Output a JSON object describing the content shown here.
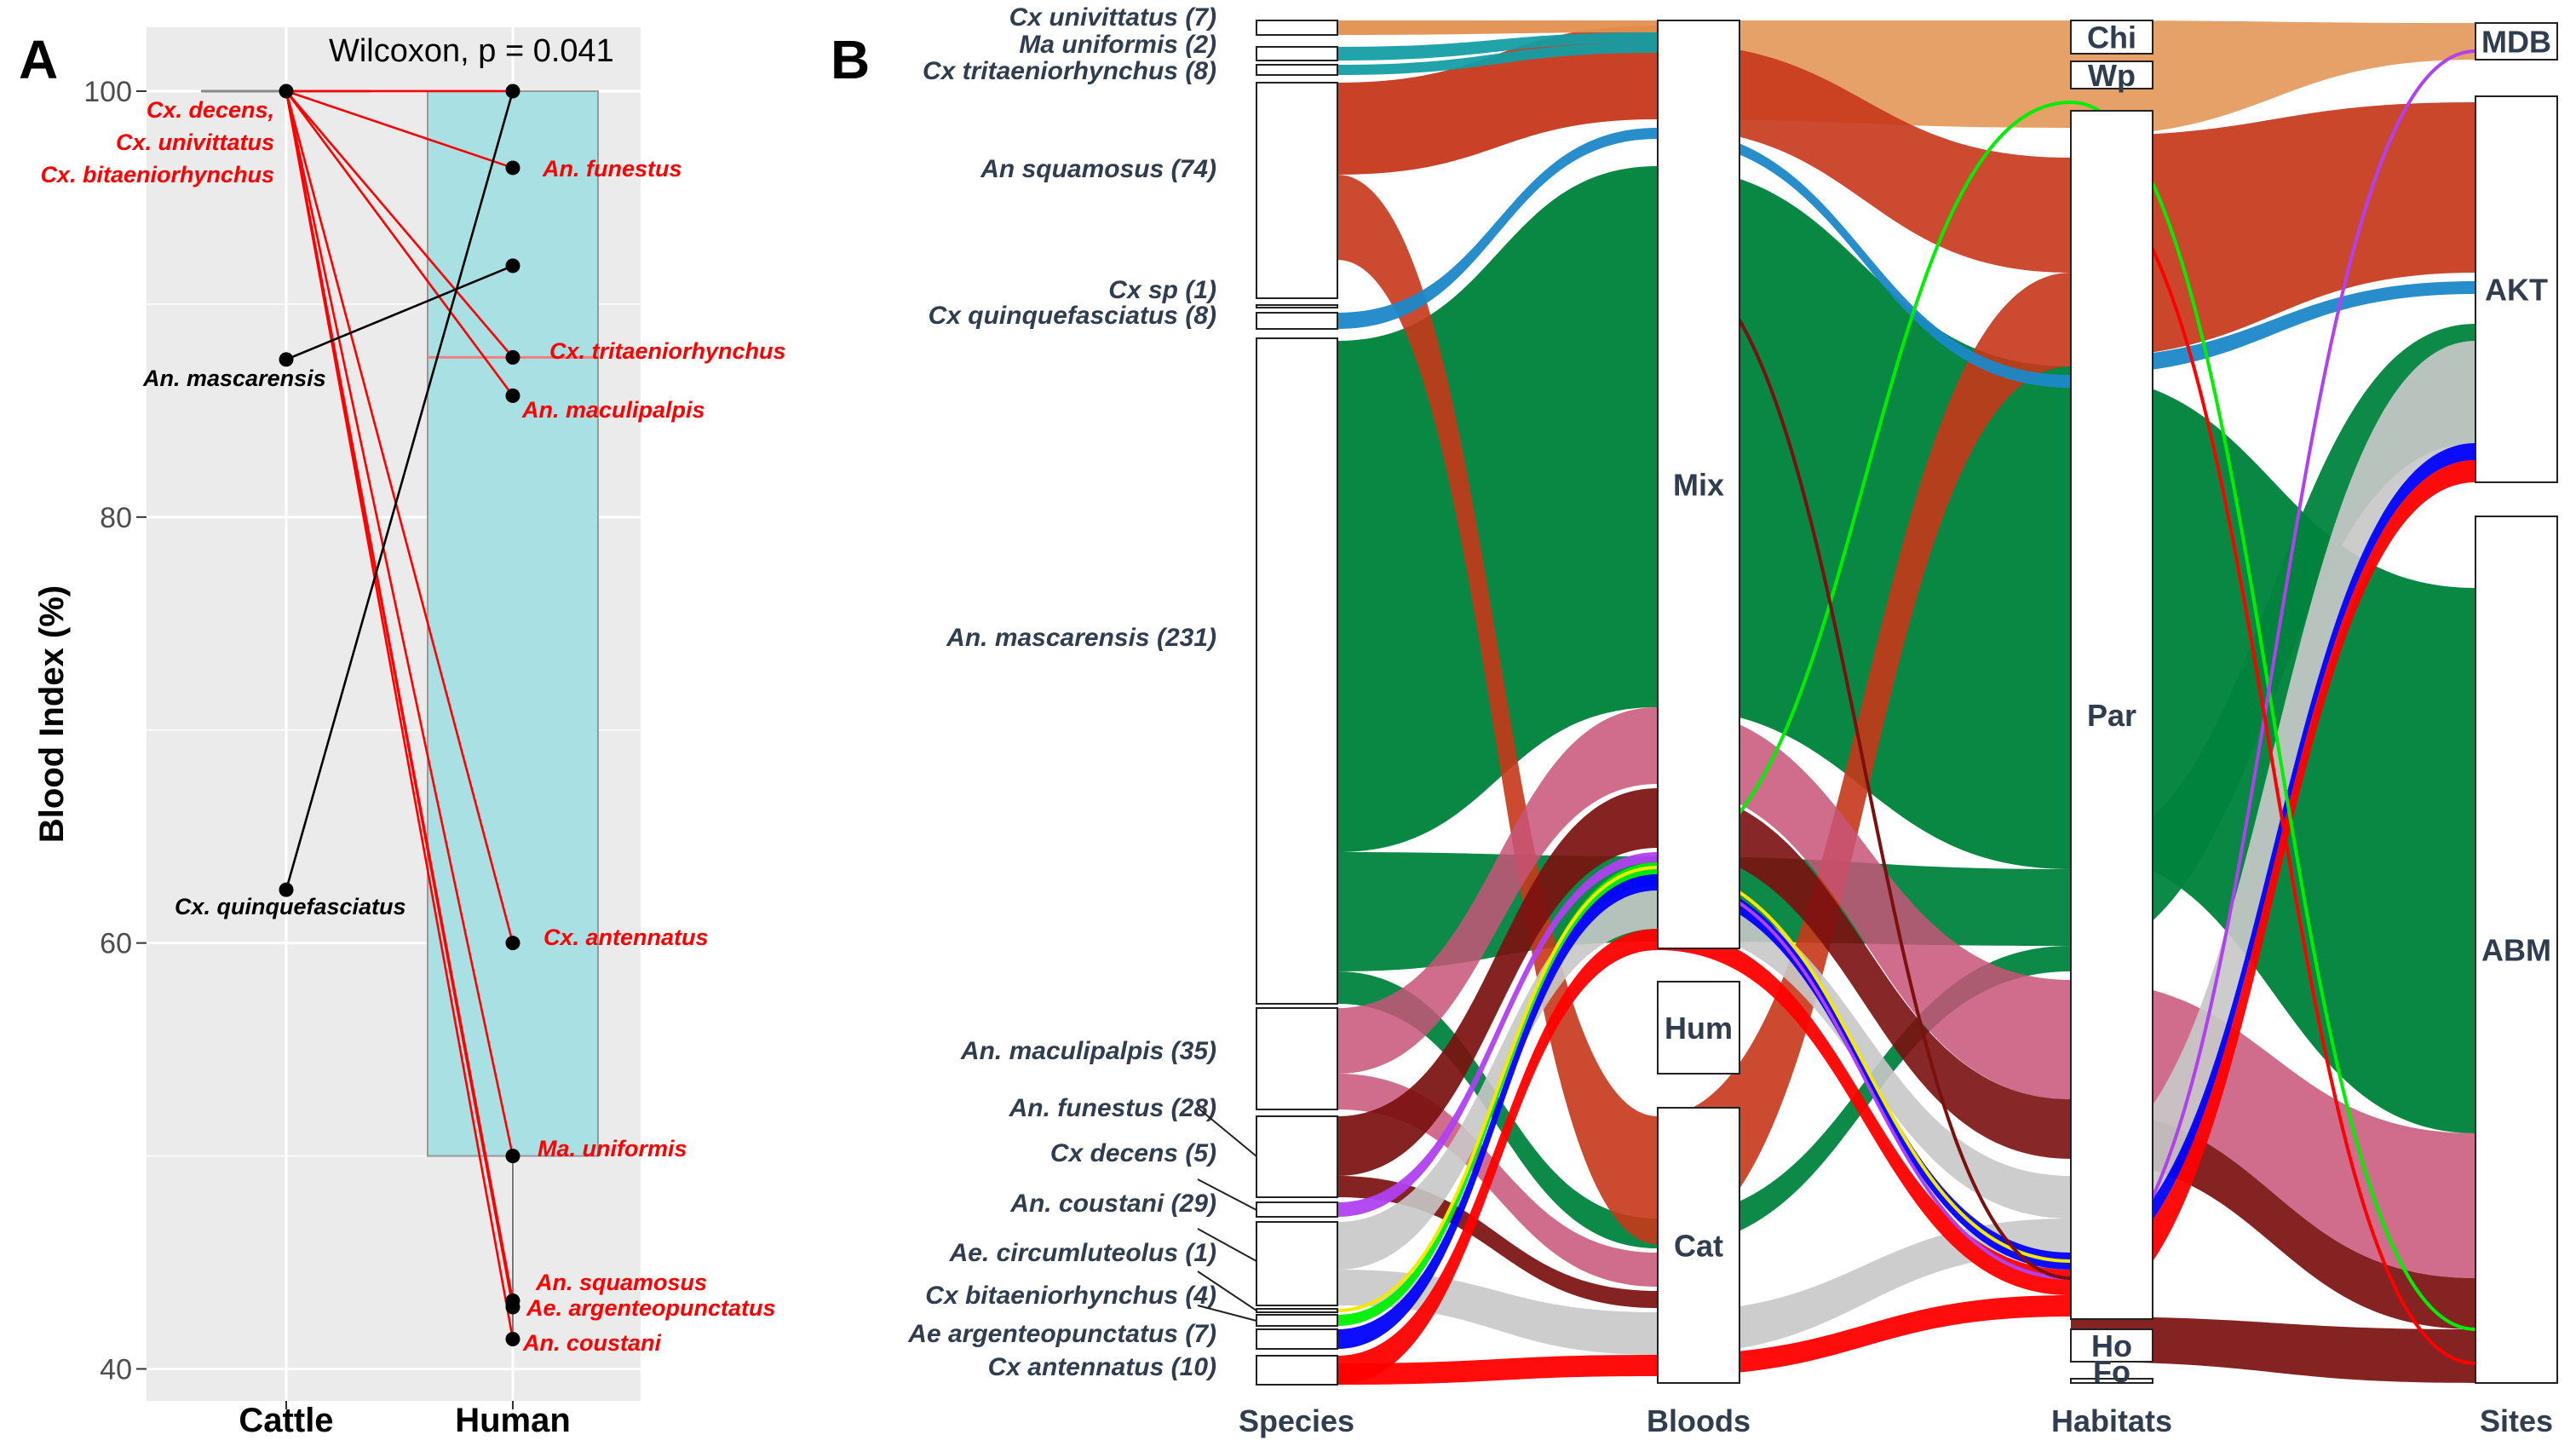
{
  "panel_a_letter": "A",
  "panel_b_letter": "B",
  "chart_data": [
    {
      "type": "scatter",
      "panel": "A",
      "title": "",
      "annotation": "Wilcoxon, p = 0.041",
      "xlabel": "",
      "ylabel": "Blood Index (%)",
      "categories": [
        "Cattle",
        "Human"
      ],
      "ylim": [
        38.5,
        103
      ],
      "yticks": [
        "40",
        "60",
        "80",
        "100"
      ],
      "box_human": {
        "q1": 50,
        "q3": 100,
        "median": 87.5,
        "color": "#a8e0e4"
      },
      "box_cattle": {
        "value": 100
      },
      "pairs": [
        {
          "name": "Cx. decens, Cx. univittatus, Cx. bitaeniorhynchus",
          "cattle": 100,
          "human": 100,
          "color": "#ff0000"
        },
        {
          "name": "An. funestus",
          "cattle": 100,
          "human": 96.4,
          "color": "#ff0000"
        },
        {
          "name": "Cx. tritaeniorhynchus",
          "cattle": 100,
          "human": 87.5,
          "color": "#ff0000"
        },
        {
          "name": "An. maculipalpis",
          "cattle": 100,
          "human": 85.7,
          "color": "#ff0000"
        },
        {
          "name": "Cx. antennatus",
          "cattle": 100,
          "human": 60,
          "color": "#ff0000"
        },
        {
          "name": "Ma. uniformis",
          "cattle": 100,
          "human": 50,
          "color": "#ff0000"
        },
        {
          "name": "An. squamosus",
          "cattle": 100,
          "human": 43.2,
          "color": "#ff0000"
        },
        {
          "name": "Ae. argenteopunctatus",
          "cattle": 100,
          "human": 42.9,
          "color": "#ff0000"
        },
        {
          "name": "An. coustani",
          "cattle": 100,
          "human": 41.4,
          "color": "#ff0000"
        },
        {
          "name": "An. mascarensis",
          "cattle": 87.4,
          "human": 91.8,
          "color": "#000000"
        },
        {
          "name": "Cx. quinquefasciatus",
          "cattle": 62.5,
          "human": 100,
          "color": "#000000"
        }
      ],
      "labels": [
        {
          "lines": [
            "Cx. decens,",
            "Cx. univittatus",
            "Cx. bitaeniorhynchus"
          ],
          "color": "#ff0000"
        },
        {
          "lines": [
            "An. funestus"
          ],
          "color": "#ff0000"
        },
        {
          "lines": [
            "Cx. tritaeniorhynchus"
          ],
          "color": "#ff0000"
        },
        {
          "lines": [
            "An. maculipalpis"
          ],
          "color": "#ff0000"
        },
        {
          "lines": [
            "An. mascarensis"
          ],
          "color": "#000000"
        },
        {
          "lines": [
            "Cx. antennatus"
          ],
          "color": "#ff0000"
        },
        {
          "lines": [
            "Cx. quinquefasciatus"
          ],
          "color": "#000000"
        },
        {
          "lines": [
            "Ma. uniformis"
          ],
          "color": "#ff0000"
        },
        {
          "lines": [
            "An. squamosus"
          ],
          "color": "#ff0000"
        },
        {
          "lines": [
            "Ae. argenteopunctatus"
          ],
          "color": "#ff0000"
        },
        {
          "lines": [
            "An. coustani"
          ],
          "color": "#ff0000"
        }
      ]
    },
    {
      "type": "alluvial",
      "panel": "B",
      "axes": [
        "Species",
        "Bloods",
        "Habitats",
        "Sites"
      ],
      "species": [
        {
          "name": "Cx univittatus (7)",
          "count": 7
        },
        {
          "name": "Ma uniformis (2)",
          "count": 2
        },
        {
          "name": "Cx tritaeniorhynchus (8)",
          "count": 8
        },
        {
          "name": "An squamosus (74)",
          "count": 74
        },
        {
          "name": "Cx sp (1)",
          "count": 1
        },
        {
          "name": "Cx quinquefasciatus (8)",
          "count": 8
        },
        {
          "name": "An. mascarensis (231)",
          "count": 231
        },
        {
          "name": "An. maculipalpis (35)",
          "count": 35
        },
        {
          "name": "An. funestus (28)",
          "count": 28
        },
        {
          "name": "Cx decens (5)",
          "count": 5
        },
        {
          "name": "An. coustani (29)",
          "count": 29
        },
        {
          "name": "Ae. circumluteolus (1)",
          "count": 1
        },
        {
          "name": "Cx bitaeniorhynchus (4)",
          "count": 4
        },
        {
          "name": "Ae argenteopunctatus (7)",
          "count": 7
        },
        {
          "name": "Cx antennatus (10)",
          "count": 10
        }
      ],
      "bloods": [
        "Mix",
        "Hum",
        "Cat"
      ],
      "habitats": [
        "Chi",
        "Wp",
        "Par",
        "Ho",
        "Fo"
      ],
      "sites": [
        "MDB",
        "AKT",
        "ABM"
      ],
      "flow_colors": {
        "An. mascarensis": "#00843d",
        "An squamosus": "#c6371a",
        "An. maculipalpis": "#c85478",
        "An. funestus": "#7b1010",
        "An. coustani": "#c8c8c8",
        "Cx univittatus": "#e2904e",
        "Cx tritaeniorhynchus": "#149ea4",
        "Cx quinquefasciatus": "#1b88c8",
        "Cx antennatus": "#ff0000",
        "Ae argenteopunctatus": "#0000ff",
        "Cx bitaeniorhynchus": "#00ee00",
        "Cx decens": "#b040f0",
        "Ae. circumluteolus": "#f5e800"
      }
    }
  ]
}
